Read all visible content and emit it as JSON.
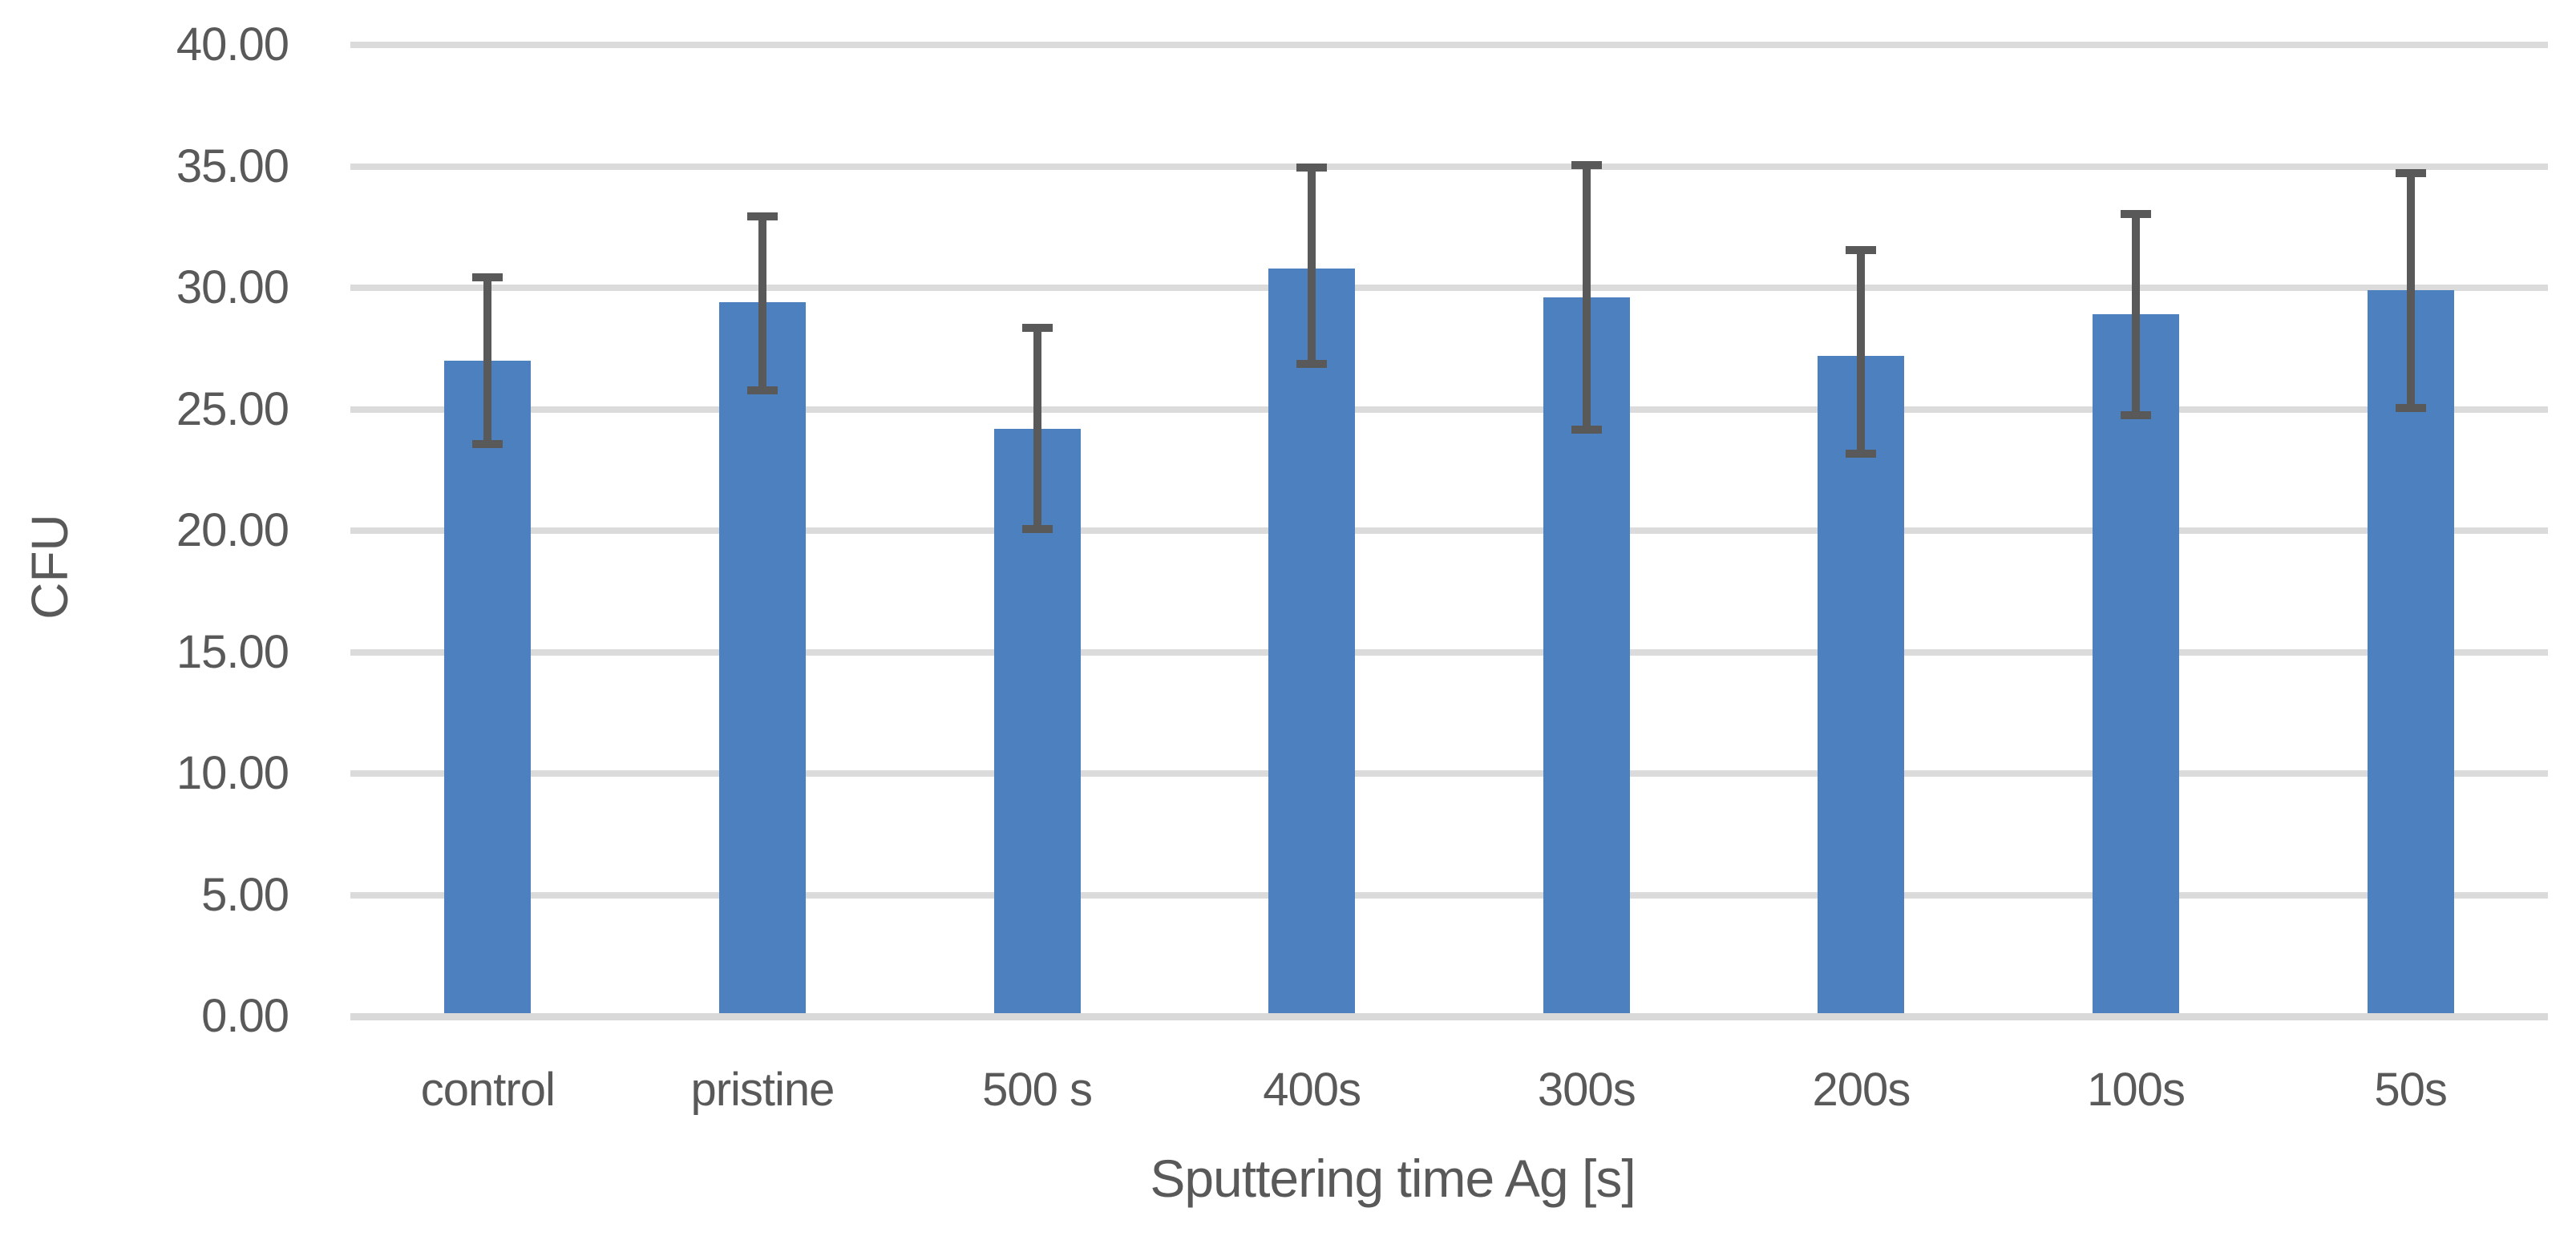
{
  "chart_data": {
    "type": "bar",
    "title": "",
    "xlabel": "Sputtering time Ag [s]",
    "ylabel": "CFU",
    "categories": [
      "control",
      "pristine",
      "500 s",
      "400s",
      "300s",
      "200s",
      "100s",
      "50s"
    ],
    "series": [
      {
        "name": "CFU",
        "values": [
          27.0,
          29.4,
          24.2,
          30.8,
          29.6,
          27.2,
          28.9,
          29.9
        ]
      }
    ],
    "error_bars": {
      "upper": [
        3.6,
        3.7,
        4.3,
        4.3,
        5.6,
        4.5,
        4.3,
        5.0
      ],
      "lower": [
        3.6,
        3.8,
        4.3,
        4.1,
        5.6,
        4.2,
        4.3,
        5.0
      ]
    },
    "ylim": [
      0,
      40
    ],
    "ytick_step": 5,
    "ytick_labels": [
      "0.00",
      "5.00",
      "10.00",
      "15.00",
      "20.00",
      "25.00",
      "30.00",
      "35.00",
      "40.00"
    ],
    "grid": true,
    "legend": false,
    "colors": {
      "bar": "#4D80BE",
      "error": "#595959",
      "gridline": "#DBDBDB",
      "axis_line": "#D9D9D9",
      "text": "#595959",
      "background": "#FFFFFF"
    }
  }
}
